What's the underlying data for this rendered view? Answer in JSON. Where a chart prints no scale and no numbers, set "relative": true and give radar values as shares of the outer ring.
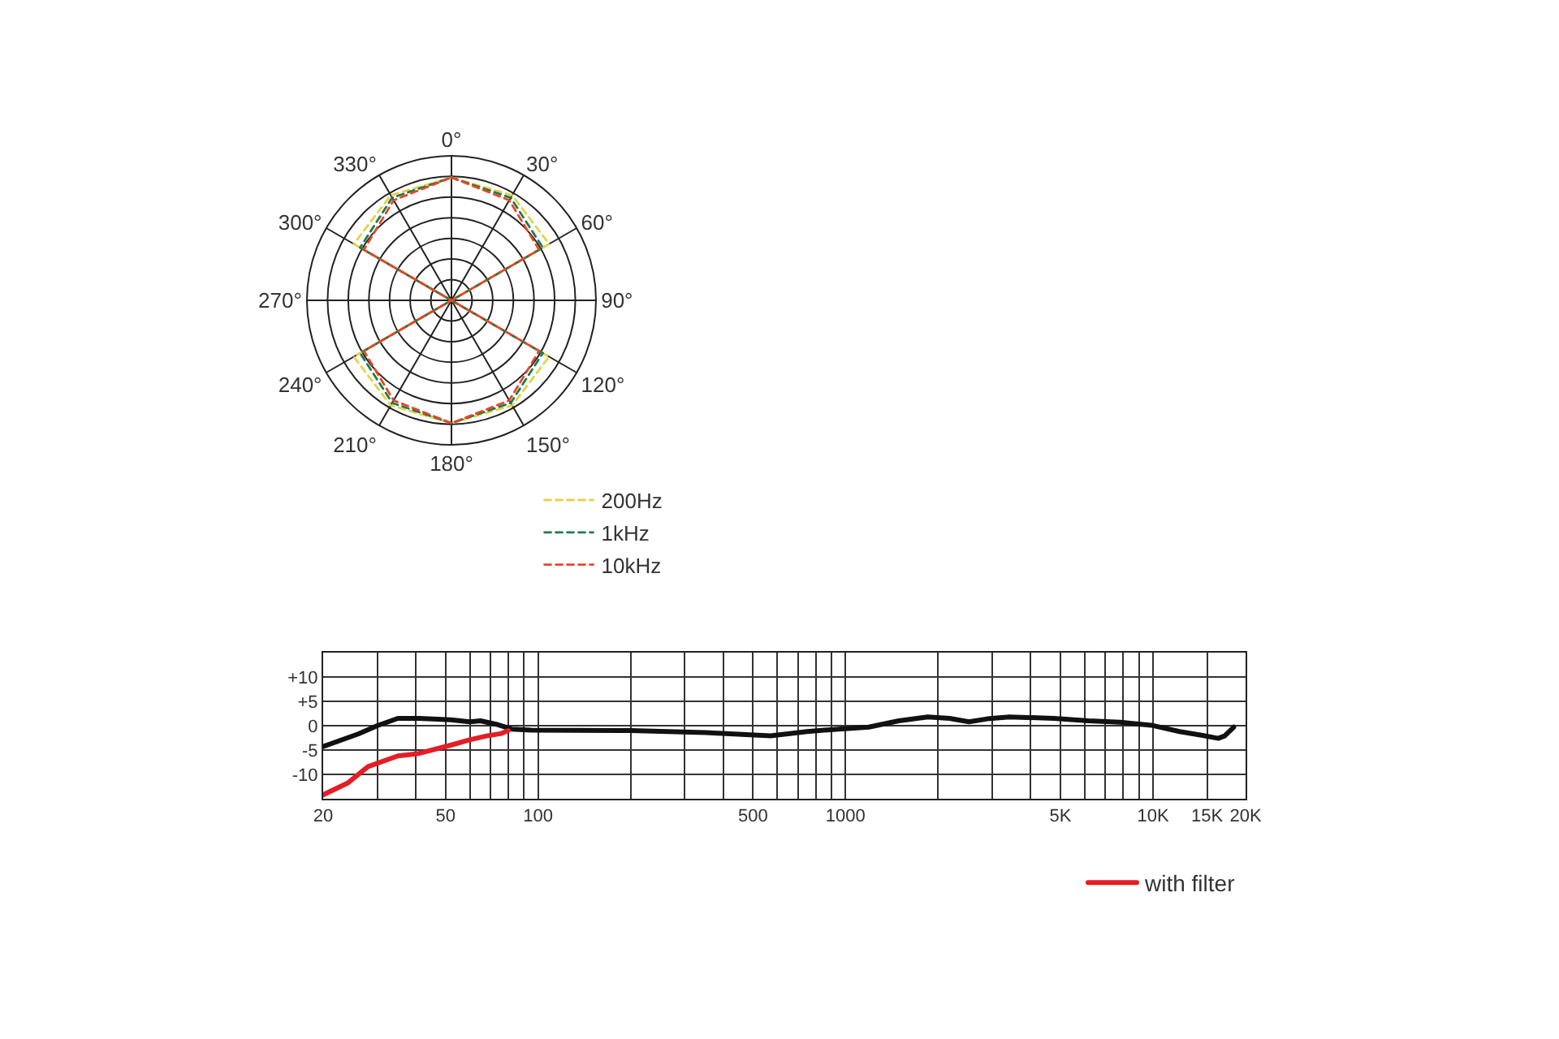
{
  "chart_data": [
    {
      "type": "radar",
      "relative": true,
      "grid": true,
      "legend": "bottom right",
      "line_style": "dashed",
      "marker": "none",
      "categories": [
        "0°",
        "30°",
        "60°",
        "90°",
        "120°",
        "150°",
        "180°",
        "210°",
        "240°",
        "270°",
        "300°",
        "330°"
      ],
      "series": [
        {
          "name": "200Hz",
          "color": "#e6d24a",
          "values": [
            0.85,
            0.84,
            0.78,
            0,
            0.78,
            0.84,
            0.85,
            0.84,
            0.78,
            0,
            0.78,
            0.84
          ]
        },
        {
          "name": "1kHz",
          "color": "#1f7a4f",
          "values": [
            0.85,
            0.82,
            0.73,
            0,
            0.73,
            0.82,
            0.85,
            0.82,
            0.73,
            0,
            0.73,
            0.82
          ]
        },
        {
          "name": "10kHz",
          "color": "#e8452a",
          "values": [
            0.85,
            0.8,
            0.7,
            0,
            0.7,
            0.8,
            0.85,
            0.8,
            0.7,
            0,
            0.7,
            0.8
          ]
        }
      ]
    },
    {
      "type": "line",
      "log": "x",
      "grid": true,
      "legend": "bottom right",
      "line_style": "solid",
      "marker": "none",
      "xlim": [
        20,
        20000
      ],
      "xticks": [
        20,
        {
          "value": 30,
          "label": null
        },
        {
          "value": 40,
          "label": null
        },
        50,
        {
          "value": 60,
          "label": null
        },
        {
          "value": 70,
          "label": null
        },
        {
          "value": 80,
          "label": null
        },
        {
          "value": 90,
          "label": null
        },
        100,
        {
          "value": 200,
          "label": null
        },
        {
          "value": 300,
          "label": null
        },
        {
          "value": 400,
          "label": null
        },
        500,
        {
          "value": 600,
          "label": null
        },
        {
          "value": 700,
          "label": null
        },
        {
          "value": 800,
          "label": null
        },
        {
          "value": 900,
          "label": null
        },
        1000,
        {
          "value": 2000,
          "label": null
        },
        {
          "value": 3000,
          "label": null
        },
        {
          "value": 4000,
          "label": null
        },
        {
          "value": 5000,
          "label": "5K"
        },
        {
          "value": 6000,
          "label": null
        },
        {
          "value": 7000,
          "label": null
        },
        {
          "value": 8000,
          "label": null
        },
        {
          "value": 9000,
          "label": null
        },
        {
          "value": 10000,
          "label": "10K"
        },
        {
          "value": 15000,
          "label": "15K"
        },
        {
          "value": 20000,
          "label": "20K"
        }
      ],
      "ylim": [
        -15,
        15
      ],
      "yticks": [
        {
          "value": -15,
          "label": null
        },
        -10,
        -5,
        0,
        {
          "value": 5,
          "label": "+5"
        },
        {
          "value": 10,
          "label": "+10"
        },
        {
          "value": 15,
          "label": null
        }
      ],
      "series": [
        {
          "color": "#111111",
          "x": [
            20,
            26,
            30,
            35,
            41,
            52,
            60,
            65,
            73,
            82,
            95,
            200,
            350,
            570,
            750,
            950,
            1190,
            1490,
            1850,
            2180,
            2520,
            2890,
            3410,
            4760,
            6170,
            7810,
            9860,
            12200,
            14500,
            16300,
            17100,
            18300
          ],
          "values": [
            -4.3,
            -1.7,
            0,
            1.5,
            1.5,
            1.2,
            0.8,
            1,
            0.3,
            -0.7,
            -0.9,
            -1.0,
            -1.4,
            -2.1,
            -1.2,
            -0.7,
            -0.3,
            1,
            1.8,
            1.5,
            0.8,
            1.4,
            1.8,
            1.5,
            1,
            0.7,
            0.1,
            -1.2,
            -2,
            -2.6,
            -2.1,
            -0.3
          ]
        },
        {
          "name": "with filter",
          "color": "#e41e26",
          "x": [
            20,
            24,
            28,
            35,
            41,
            52,
            60,
            68,
            76,
            80
          ],
          "values": [
            -14.2,
            -11.8,
            -8.4,
            -6.2,
            -5.7,
            -4,
            -2.9,
            -2.1,
            -1.6,
            -1
          ]
        }
      ]
    }
  ]
}
